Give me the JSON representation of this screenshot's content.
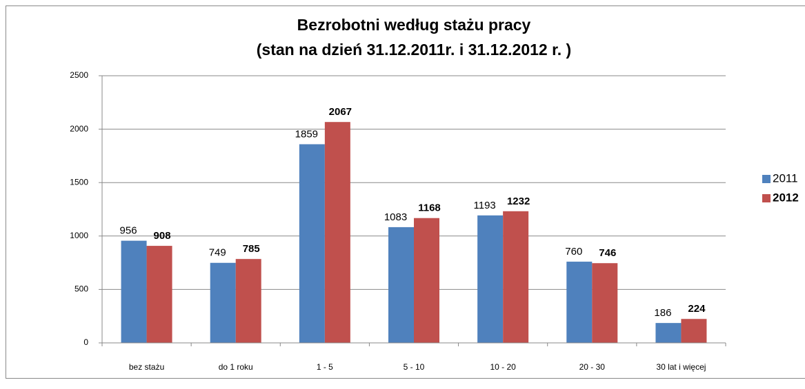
{
  "chart_data": {
    "type": "bar",
    "title": "Bezrobotni według stażu pracy",
    "subtitle": "(stan na dzień 31.12.2011r. i 31.12.2012 r. )",
    "categories": [
      "bez stażu",
      "do 1 roku",
      "1 - 5",
      "5 - 10",
      "10 - 20",
      "20 - 30",
      "30 lat i więcej"
    ],
    "series": [
      {
        "name": "2011",
        "color": "#4f81bd",
        "values": [
          956,
          749,
          1859,
          1083,
          1193,
          760,
          186
        ]
      },
      {
        "name": "2012",
        "color": "#c0504d",
        "values": [
          908,
          785,
          2067,
          1168,
          1232,
          746,
          224
        ]
      }
    ],
    "ylim": [
      0,
      2500
    ],
    "yticks": [
      0,
      500,
      1000,
      1500,
      2000,
      2500
    ],
    "grid": true,
    "legend": "right"
  }
}
